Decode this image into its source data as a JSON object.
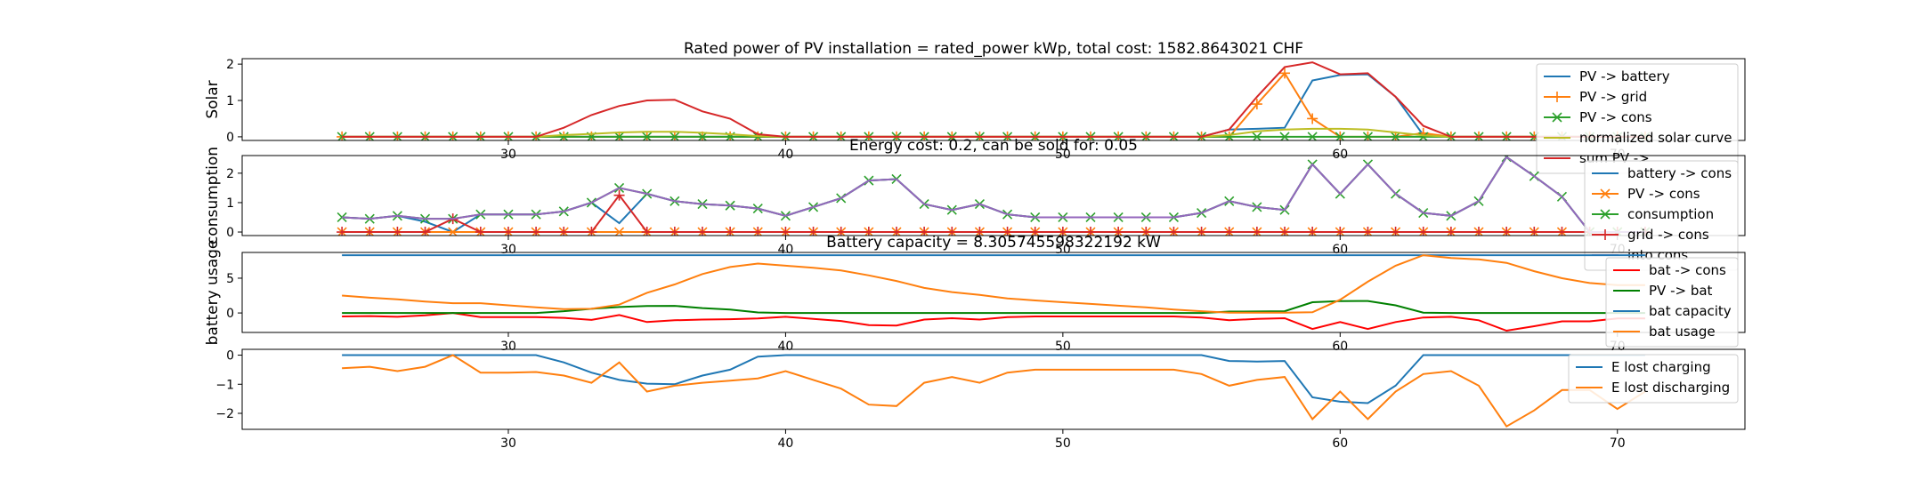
{
  "chart_data": [
    {
      "type": "line",
      "title": "Rated power of PV installation = rated_power kWp, total cost: 1582.8643021 CHF",
      "ylabel": "Solar",
      "xlim": [
        20.4,
        74.6
      ],
      "ylim": [
        -0.1,
        2.15
      ],
      "xticks": [
        30,
        40,
        50,
        60,
        70
      ],
      "yticks": [
        0,
        1,
        2
      ],
      "legend_position": "upper right",
      "x": [
        24,
        25,
        26,
        27,
        28,
        29,
        30,
        31,
        32,
        33,
        34,
        35,
        36,
        37,
        38,
        39,
        40,
        41,
        42,
        43,
        44,
        45,
        46,
        47,
        48,
        49,
        50,
        51,
        52,
        53,
        54,
        55,
        56,
        57,
        58,
        59,
        60,
        61,
        62,
        63,
        64,
        65,
        66,
        67,
        68,
        69,
        70,
        71
      ],
      "series": [
        {
          "name": "PV -> battery",
          "color": "#1f77b4",
          "marker": "",
          "values": [
            0,
            0,
            0,
            0,
            0,
            0,
            0,
            0,
            0,
            0,
            0,
            0,
            0,
            0,
            0,
            0,
            0,
            0,
            0,
            0,
            0,
            0,
            0,
            0,
            0,
            0,
            0,
            0,
            0,
            0,
            0,
            0,
            0.2,
            0.22,
            0.25,
            1.55,
            1.7,
            1.72,
            1.1,
            0.05,
            0,
            0,
            0,
            0,
            0,
            0,
            0,
            0
          ]
        },
        {
          "name": "PV -> grid",
          "color": "#ff7f0e",
          "marker": "plus",
          "values": [
            0,
            0,
            0,
            0,
            0,
            0,
            0,
            0,
            0,
            0,
            0,
            0,
            0,
            0,
            0,
            0,
            0,
            0,
            0,
            0,
            0,
            0,
            0,
            0,
            0,
            0,
            0,
            0,
            0,
            0,
            0,
            0,
            0,
            0.9,
            1.75,
            0.5,
            0,
            0,
            0,
            0.1,
            0,
            0,
            0,
            0,
            0,
            0,
            0,
            0
          ]
        },
        {
          "name": "PV -> cons",
          "color": "#2ca02c",
          "marker": "x",
          "values": [
            0,
            0,
            0,
            0,
            0,
            0,
            0,
            0,
            0,
            0,
            0,
            0,
            0,
            0,
            0,
            0,
            0,
            0,
            0,
            0,
            0,
            0,
            0,
            0,
            0,
            0,
            0,
            0,
            0,
            0,
            0,
            0,
            0,
            0,
            0,
            0,
            0,
            0,
            0,
            0,
            0,
            0,
            0,
            0,
            0,
            0,
            0,
            0
          ]
        },
        {
          "name": "normalized solar curve",
          "color": "#bcbd22",
          "marker": "",
          "values": [
            0,
            0,
            0,
            0,
            0,
            0,
            0,
            0,
            0.05,
            0.08,
            0.12,
            0.14,
            0.14,
            0.11,
            0.07,
            0.02,
            0,
            0,
            0,
            0,
            0,
            0,
            0,
            0,
            0,
            0,
            0,
            0,
            0,
            0,
            0,
            0,
            0.05,
            0.15,
            0.2,
            0.22,
            0.22,
            0.2,
            0.12,
            0.04,
            0,
            0,
            0,
            0,
            0,
            0,
            0,
            0
          ]
        },
        {
          "name": "sum PV ->",
          "color": "#d62728",
          "marker": "",
          "values": [
            0,
            0,
            0,
            0,
            0,
            0,
            0,
            0,
            0.25,
            0.6,
            0.85,
            1.0,
            1.02,
            0.7,
            0.5,
            0.07,
            0,
            0,
            0,
            0,
            0,
            0,
            0,
            0,
            0,
            0,
            0,
            0,
            0,
            0,
            0,
            0,
            0.2,
            1.1,
            1.92,
            2.05,
            1.72,
            1.75,
            1.1,
            0.3,
            0,
            0,
            0,
            0,
            0,
            0,
            0,
            0
          ]
        }
      ]
    },
    {
      "type": "line",
      "title": "Energy cost: 0.2, can be sold for: 0.05",
      "ylabel": "consumption",
      "xlim": [
        20.4,
        74.6
      ],
      "ylim": [
        -0.12,
        2.6
      ],
      "xticks": [
        30,
        40,
        50,
        60,
        70
      ],
      "yticks": [
        0,
        1,
        2
      ],
      "legend_position": "upper right",
      "x": [
        24,
        25,
        26,
        27,
        28,
        29,
        30,
        31,
        32,
        33,
        34,
        35,
        36,
        37,
        38,
        39,
        40,
        41,
        42,
        43,
        44,
        45,
        46,
        47,
        48,
        49,
        50,
        51,
        52,
        53,
        54,
        55,
        56,
        57,
        58,
        59,
        60,
        61,
        62,
        63,
        64,
        65,
        66,
        67,
        68,
        69,
        70,
        71
      ],
      "series": [
        {
          "name": "battery -> cons",
          "color": "#1f77b4",
          "marker": "",
          "values": [
            0.5,
            0.45,
            0.55,
            0.35,
            0,
            0.6,
            0.6,
            0.6,
            0.7,
            1.0,
            0.3,
            1.3,
            1.05,
            0.95,
            0.9,
            0.8,
            0.55,
            0.85,
            1.15,
            1.75,
            1.8,
            0.95,
            0.75,
            0.95,
            0.6,
            0.5,
            0.5,
            0.5,
            0.5,
            0.5,
            0.5,
            0.65,
            1.05,
            0.85,
            0.75,
            2.3,
            1.3,
            2.3,
            1.3,
            0.65,
            0.55,
            1.05,
            2.55,
            1.9,
            1.2,
            0,
            0,
            0
          ]
        },
        {
          "name": "PV -> cons",
          "color": "#ff7f0e",
          "marker": "x",
          "values": [
            0,
            0,
            0,
            0,
            0,
            0,
            0,
            0,
            0,
            0,
            0,
            0,
            0,
            0,
            0,
            0,
            0,
            0,
            0,
            0,
            0,
            0,
            0,
            0,
            0,
            0,
            0,
            0,
            0,
            0,
            0,
            0,
            0,
            0,
            0,
            0,
            0,
            0,
            0,
            0,
            0,
            0,
            0,
            0,
            0,
            0,
            0,
            0
          ]
        },
        {
          "name": "consumption",
          "color": "#2ca02c",
          "marker": "x",
          "values": [
            0.5,
            0.45,
            0.55,
            0.45,
            0.45,
            0.6,
            0.6,
            0.6,
            0.7,
            1.0,
            1.5,
            1.3,
            1.05,
            0.95,
            0.9,
            0.8,
            0.55,
            0.85,
            1.15,
            1.75,
            1.8,
            0.95,
            0.75,
            0.95,
            0.6,
            0.5,
            0.5,
            0.5,
            0.5,
            0.5,
            0.5,
            0.65,
            1.05,
            0.85,
            0.75,
            2.3,
            1.3,
            2.3,
            1.3,
            0.65,
            0.55,
            1.05,
            2.55,
            1.9,
            1.2,
            0,
            0,
            0
          ]
        },
        {
          "name": "grid -> cons",
          "color": "#d62728",
          "marker": "plus",
          "values": [
            0,
            0,
            0,
            0,
            0.45,
            0,
            0,
            0,
            0,
            0,
            1.25,
            0,
            0,
            0,
            0,
            0,
            0,
            0,
            0,
            0,
            0,
            0,
            0,
            0,
            0,
            0,
            0,
            0,
            0,
            0,
            0,
            0,
            0,
            0,
            0,
            0,
            0,
            0,
            0,
            0,
            0,
            0,
            0,
            0,
            0,
            0,
            0,
            0
          ]
        },
        {
          "name": "into cons",
          "color": "#9467bd",
          "marker": "",
          "values": [
            0.5,
            0.45,
            0.55,
            0.45,
            0.45,
            0.6,
            0.6,
            0.6,
            0.7,
            1.0,
            1.5,
            1.3,
            1.05,
            0.95,
            0.9,
            0.8,
            0.55,
            0.85,
            1.15,
            1.75,
            1.8,
            0.95,
            0.75,
            0.95,
            0.6,
            0.5,
            0.5,
            0.5,
            0.5,
            0.5,
            0.5,
            0.65,
            1.05,
            0.85,
            0.75,
            2.3,
            1.3,
            2.3,
            1.3,
            0.65,
            0.55,
            1.05,
            2.55,
            1.9,
            1.2,
            0,
            0,
            0
          ]
        }
      ]
    },
    {
      "type": "line",
      "title": "Battery capacity = 8.305745598322192 kW",
      "ylabel": "battery usage",
      "xlim": [
        20.4,
        74.6
      ],
      "ylim": [
        -2.8,
        8.7
      ],
      "xticks": [
        30,
        40,
        50,
        60,
        70
      ],
      "yticks": [
        0,
        5
      ],
      "legend_position": "upper right",
      "x": [
        24,
        25,
        26,
        27,
        28,
        29,
        30,
        31,
        32,
        33,
        34,
        35,
        36,
        37,
        38,
        39,
        40,
        41,
        42,
        43,
        44,
        45,
        46,
        47,
        48,
        49,
        50,
        51,
        52,
        53,
        54,
        55,
        56,
        57,
        58,
        59,
        60,
        61,
        62,
        63,
        64,
        65,
        66,
        67,
        68,
        69,
        70,
        71
      ],
      "series": [
        {
          "name": "bat -> cons",
          "color": "#ff0000",
          "marker": "",
          "values": [
            -0.5,
            -0.45,
            -0.55,
            -0.35,
            0,
            -0.6,
            -0.6,
            -0.6,
            -0.7,
            -1.0,
            -0.3,
            -1.3,
            -1.05,
            -0.95,
            -0.9,
            -0.8,
            -0.55,
            -0.85,
            -1.15,
            -1.75,
            -1.8,
            -0.95,
            -0.75,
            -0.95,
            -0.6,
            -0.5,
            -0.5,
            -0.5,
            -0.5,
            -0.5,
            -0.5,
            -0.65,
            -1.05,
            -0.85,
            -0.75,
            -2.3,
            -1.3,
            -2.3,
            -1.3,
            -0.65,
            -0.55,
            -1.05,
            -2.55,
            -1.9,
            -1.2,
            -1.2,
            -0.8,
            -0.8
          ]
        },
        {
          "name": "PV -> bat",
          "color": "#008000",
          "marker": "",
          "values": [
            0,
            0,
            0,
            0,
            0,
            0,
            0,
            0,
            0.25,
            0.6,
            0.85,
            1.0,
            1.02,
            0.7,
            0.5,
            0.07,
            0,
            0,
            0,
            0,
            0,
            0,
            0,
            0,
            0,
            0,
            0,
            0,
            0,
            0,
            0,
            0,
            0.2,
            0.22,
            0.25,
            1.55,
            1.7,
            1.72,
            1.1,
            0.05,
            0,
            0,
            0,
            0,
            0,
            0,
            0,
            0
          ]
        },
        {
          "name": "bat capacity",
          "color": "#1f77b4",
          "marker": "",
          "values": [
            8.31,
            8.31,
            8.31,
            8.31,
            8.31,
            8.31,
            8.31,
            8.31,
            8.31,
            8.31,
            8.31,
            8.31,
            8.31,
            8.31,
            8.31,
            8.31,
            8.31,
            8.31,
            8.31,
            8.31,
            8.31,
            8.31,
            8.31,
            8.31,
            8.31,
            8.31,
            8.31,
            8.31,
            8.31,
            8.31,
            8.31,
            8.31,
            8.31,
            8.31,
            8.31,
            8.31,
            8.31,
            8.31,
            8.31,
            8.31,
            8.31,
            8.31,
            8.31,
            8.31,
            8.31,
            8.31,
            8.31,
            8.31
          ]
        },
        {
          "name": "bat usage",
          "color": "#ff7f0e",
          "marker": "",
          "values": [
            2.5,
            2.2,
            1.95,
            1.65,
            1.4,
            1.4,
            1.1,
            0.8,
            0.55,
            0.6,
            1.2,
            2.9,
            4.1,
            5.6,
            6.6,
            7.1,
            6.8,
            6.5,
            6.1,
            5.4,
            4.6,
            3.6,
            3.0,
            2.6,
            2.1,
            1.8,
            1.55,
            1.3,
            1.05,
            0.8,
            0.5,
            0.25,
            0.05,
            0.05,
            0.05,
            0.1,
            1.9,
            4.5,
            6.8,
            8.3,
            7.9,
            7.7,
            7.2,
            6.0,
            5.0,
            4.3,
            4.0,
            4.0
          ]
        }
      ]
    },
    {
      "type": "line",
      "title": "",
      "ylabel": "",
      "xlim": [
        20.4,
        74.6
      ],
      "ylim": [
        -2.55,
        0.2
      ],
      "xticks": [
        30,
        40,
        50,
        60,
        70
      ],
      "yticks": [
        0,
        -1,
        -2
      ],
      "legend_position": "upper right",
      "x": [
        24,
        25,
        26,
        27,
        28,
        29,
        30,
        31,
        32,
        33,
        34,
        35,
        36,
        37,
        38,
        39,
        40,
        41,
        42,
        43,
        44,
        45,
        46,
        47,
        48,
        49,
        50,
        51,
        52,
        53,
        54,
        55,
        56,
        57,
        58,
        59,
        60,
        61,
        62,
        63,
        64,
        65,
        66,
        67,
        68,
        69,
        70,
        71
      ],
      "series": [
        {
          "name": "E lost charging",
          "color": "#1f77b4",
          "marker": "",
          "values": [
            0,
            0,
            0,
            0,
            0,
            0,
            0,
            0,
            -0.25,
            -0.6,
            -0.85,
            -0.98,
            -1.0,
            -0.7,
            -0.5,
            -0.05,
            0,
            0,
            0,
            0,
            0,
            0,
            0,
            0,
            0,
            0,
            0,
            0,
            0,
            0,
            0,
            0,
            -0.2,
            -0.22,
            -0.2,
            -1.45,
            -1.6,
            -1.65,
            -1.05,
            0,
            0,
            0,
            0,
            0,
            0,
            0,
            0,
            0
          ]
        },
        {
          "name": "E lost discharging",
          "color": "#ff7f0e",
          "marker": "",
          "values": [
            -0.45,
            -0.4,
            -0.55,
            -0.4,
            0,
            -0.6,
            -0.6,
            -0.58,
            -0.7,
            -0.95,
            -0.25,
            -1.25,
            -1.05,
            -0.95,
            -0.88,
            -0.8,
            -0.55,
            -0.85,
            -1.15,
            -1.7,
            -1.75,
            -0.95,
            -0.75,
            -0.95,
            -0.6,
            -0.5,
            -0.5,
            -0.5,
            -0.5,
            -0.5,
            -0.5,
            -0.65,
            -1.05,
            -0.85,
            -0.75,
            -2.2,
            -1.25,
            -2.2,
            -1.25,
            -0.65,
            -0.55,
            -1.05,
            -2.45,
            -1.9,
            -1.2,
            -1.2,
            -1.85,
            -1.25
          ]
        }
      ]
    }
  ]
}
